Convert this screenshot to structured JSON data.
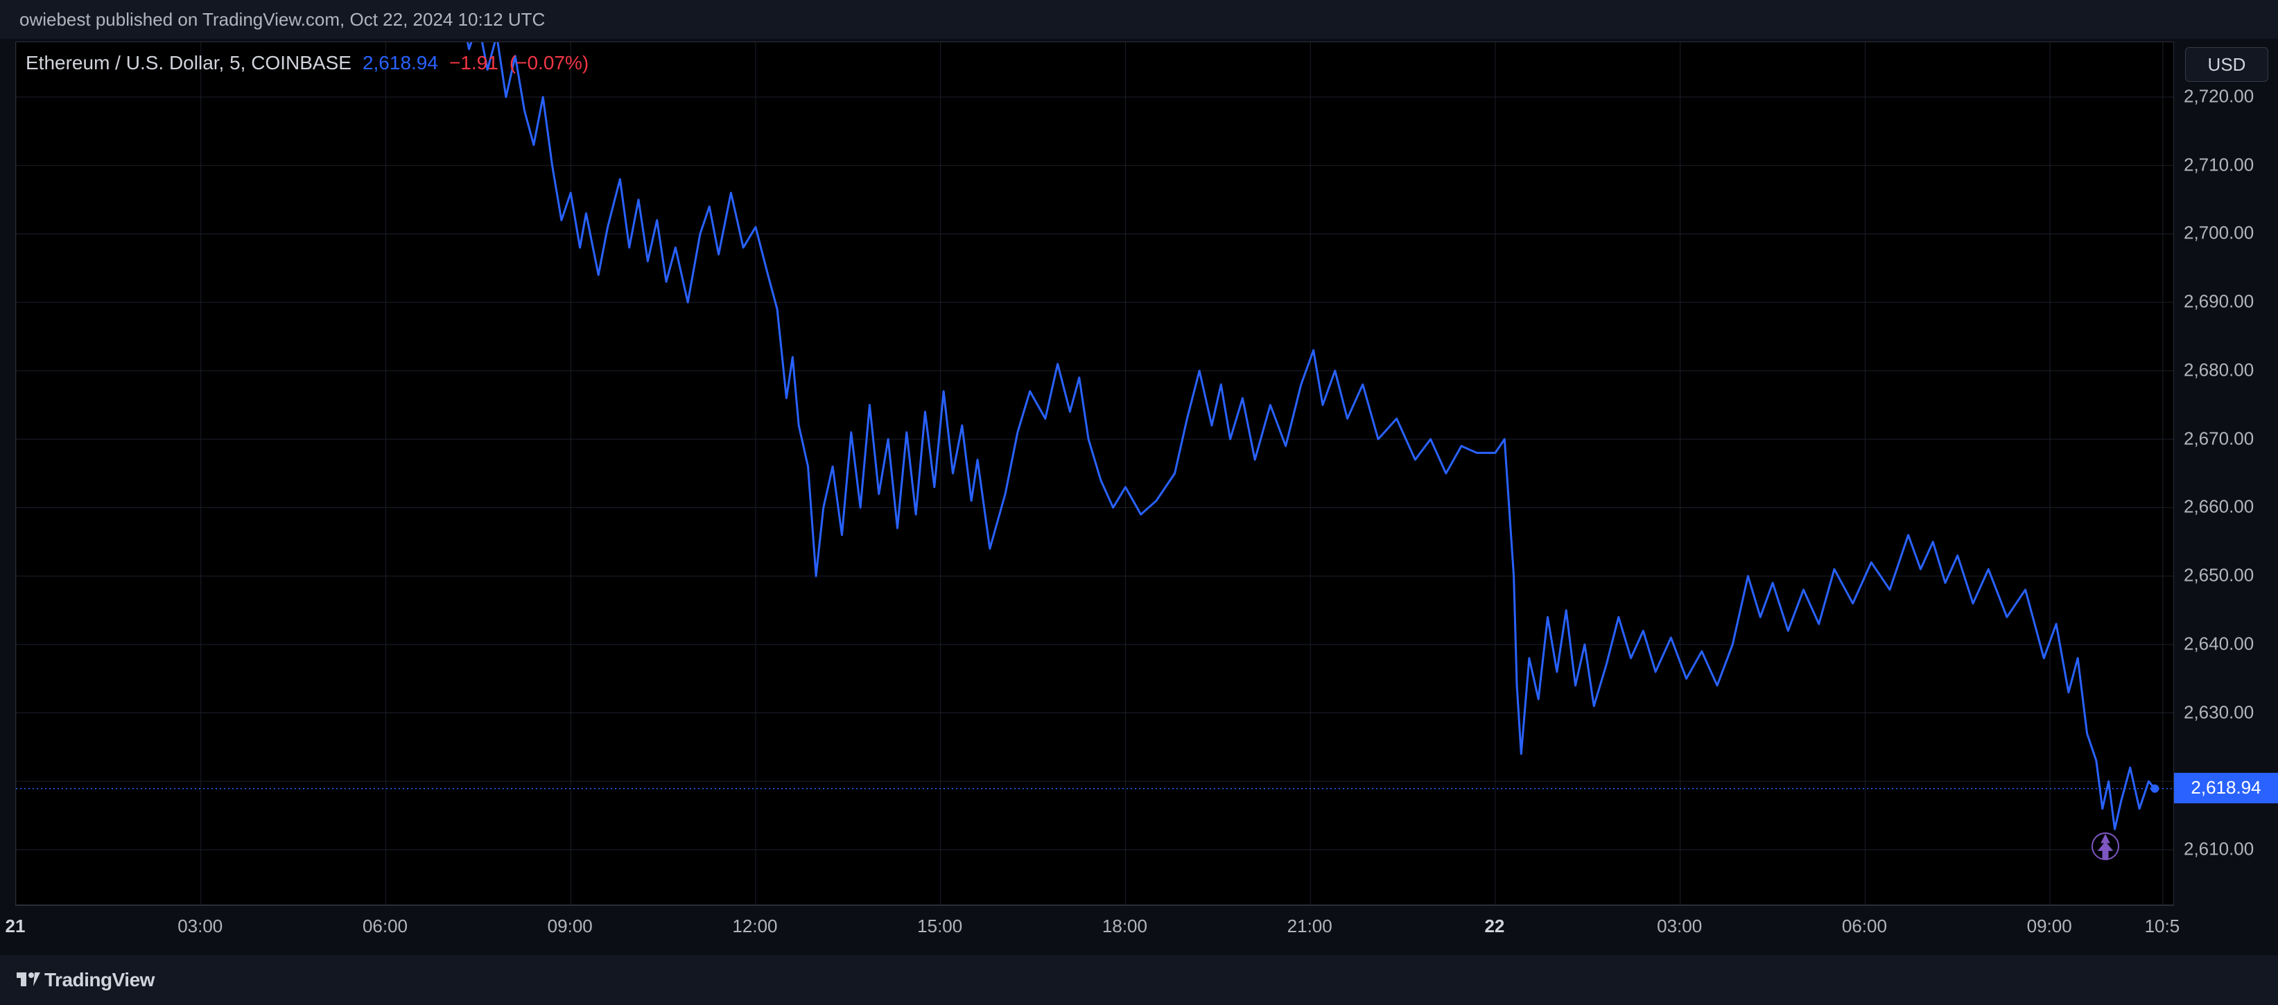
{
  "topbar": {
    "text": "owiebest published on TradingView.com, Oct 22, 2024 10:12 UTC"
  },
  "legend": {
    "symbol": "Ethereum / U.S. Dollar, 5, COINBASE",
    "last": "2,618.94",
    "change": "−1.91",
    "change_pct": "(−0.07%)"
  },
  "footer": {
    "brand": "TradingView"
  },
  "y_axis": {
    "currency": "USD",
    "min": 2602,
    "max": 2728,
    "ticks": [
      2720,
      2710,
      2700,
      2690,
      2680,
      2670,
      2660,
      2650,
      2640,
      2630,
      2620,
      2610
    ],
    "tick_labels": [
      "2,720.00",
      "2,710.00",
      "2,700.00",
      "2,690.00",
      "2,680.00",
      "2,670.00",
      "2,660.00",
      "2,650.00",
      "2,640.00",
      "2,630.00",
      "2,620.00",
      "2,610.00"
    ],
    "last_price": 2618.94,
    "last_price_label": "2,618.94",
    "grid_color": "#1c1f2b"
  },
  "x_axis": {
    "t_min": 0,
    "t_max": 35.0,
    "ticks": [
      0,
      3,
      6,
      9,
      12,
      15,
      18,
      21,
      24,
      27,
      30,
      33,
      34.83
    ],
    "tick_labels": [
      "21",
      "03:00",
      "06:00",
      "09:00",
      "12:00",
      "15:00",
      "18:00",
      "21:00",
      "22",
      "03:00",
      "06:00",
      "09:00",
      "10:5"
    ],
    "bold_idx": [
      0,
      8
    ]
  },
  "chart": {
    "type": "line",
    "line_color": "#2962ff",
    "line_width": 3,
    "background": "#000000",
    "series": [
      [
        7.2,
        2734
      ],
      [
        7.35,
        2727
      ],
      [
        7.5,
        2731
      ],
      [
        7.65,
        2724
      ],
      [
        7.8,
        2729
      ],
      [
        7.95,
        2720
      ],
      [
        8.1,
        2726
      ],
      [
        8.25,
        2718
      ],
      [
        8.4,
        2713
      ],
      [
        8.55,
        2720
      ],
      [
        8.7,
        2710
      ],
      [
        8.85,
        2702
      ],
      [
        9.0,
        2706
      ],
      [
        9.15,
        2698
      ],
      [
        9.25,
        2703
      ],
      [
        9.45,
        2694
      ],
      [
        9.6,
        2701
      ],
      [
        9.8,
        2708
      ],
      [
        9.95,
        2698
      ],
      [
        10.1,
        2705
      ],
      [
        10.25,
        2696
      ],
      [
        10.4,
        2702
      ],
      [
        10.55,
        2693
      ],
      [
        10.7,
        2698
      ],
      [
        10.9,
        2690
      ],
      [
        11.1,
        2700
      ],
      [
        11.25,
        2704
      ],
      [
        11.4,
        2697
      ],
      [
        11.6,
        2706
      ],
      [
        11.8,
        2698
      ],
      [
        12.0,
        2701
      ],
      [
        12.2,
        2694
      ],
      [
        12.35,
        2689
      ],
      [
        12.5,
        2676
      ],
      [
        12.6,
        2682
      ],
      [
        12.7,
        2672
      ],
      [
        12.85,
        2666
      ],
      [
        12.98,
        2650
      ],
      [
        13.1,
        2660
      ],
      [
        13.25,
        2666
      ],
      [
        13.4,
        2656
      ],
      [
        13.55,
        2671
      ],
      [
        13.7,
        2660
      ],
      [
        13.85,
        2675
      ],
      [
        14.0,
        2662
      ],
      [
        14.15,
        2670
      ],
      [
        14.3,
        2657
      ],
      [
        14.45,
        2671
      ],
      [
        14.6,
        2659
      ],
      [
        14.75,
        2674
      ],
      [
        14.9,
        2663
      ],
      [
        15.05,
        2677
      ],
      [
        15.2,
        2665
      ],
      [
        15.35,
        2672
      ],
      [
        15.5,
        2661
      ],
      [
        15.6,
        2667
      ],
      [
        15.8,
        2654
      ],
      [
        16.05,
        2662
      ],
      [
        16.25,
        2671
      ],
      [
        16.45,
        2677
      ],
      [
        16.7,
        2673
      ],
      [
        16.9,
        2681
      ],
      [
        17.1,
        2674
      ],
      [
        17.25,
        2679
      ],
      [
        17.4,
        2670
      ],
      [
        17.6,
        2664
      ],
      [
        17.8,
        2660
      ],
      [
        18.0,
        2663
      ],
      [
        18.25,
        2659
      ],
      [
        18.5,
        2661
      ],
      [
        18.8,
        2665
      ],
      [
        19.0,
        2673
      ],
      [
        19.2,
        2680
      ],
      [
        19.4,
        2672
      ],
      [
        19.55,
        2678
      ],
      [
        19.7,
        2670
      ],
      [
        19.9,
        2676
      ],
      [
        20.1,
        2667
      ],
      [
        20.35,
        2675
      ],
      [
        20.6,
        2669
      ],
      [
        20.85,
        2678
      ],
      [
        21.05,
        2683
      ],
      [
        21.2,
        2675
      ],
      [
        21.4,
        2680
      ],
      [
        21.6,
        2673
      ],
      [
        21.85,
        2678
      ],
      [
        22.1,
        2670
      ],
      [
        22.4,
        2673
      ],
      [
        22.7,
        2667
      ],
      [
        22.95,
        2670
      ],
      [
        23.2,
        2665
      ],
      [
        23.45,
        2669
      ],
      [
        23.7,
        2668
      ],
      [
        24.0,
        2668
      ],
      [
        24.15,
        2670
      ],
      [
        24.3,
        2650
      ],
      [
        24.35,
        2634
      ],
      [
        24.42,
        2624
      ],
      [
        24.55,
        2638
      ],
      [
        24.7,
        2632
      ],
      [
        24.85,
        2644
      ],
      [
        25.0,
        2636
      ],
      [
        25.15,
        2645
      ],
      [
        25.3,
        2634
      ],
      [
        25.45,
        2640
      ],
      [
        25.6,
        2631
      ],
      [
        25.8,
        2637
      ],
      [
        26.0,
        2644
      ],
      [
        26.2,
        2638
      ],
      [
        26.4,
        2642
      ],
      [
        26.6,
        2636
      ],
      [
        26.85,
        2641
      ],
      [
        27.1,
        2635
      ],
      [
        27.35,
        2639
      ],
      [
        27.6,
        2634
      ],
      [
        27.85,
        2640
      ],
      [
        28.1,
        2650
      ],
      [
        28.3,
        2644
      ],
      [
        28.5,
        2649
      ],
      [
        28.75,
        2642
      ],
      [
        29.0,
        2648
      ],
      [
        29.25,
        2643
      ],
      [
        29.5,
        2651
      ],
      [
        29.8,
        2646
      ],
      [
        30.1,
        2652
      ],
      [
        30.4,
        2648
      ],
      [
        30.7,
        2656
      ],
      [
        30.9,
        2651
      ],
      [
        31.1,
        2655
      ],
      [
        31.3,
        2649
      ],
      [
        31.5,
        2653
      ],
      [
        31.75,
        2646
      ],
      [
        32.0,
        2651
      ],
      [
        32.3,
        2644
      ],
      [
        32.6,
        2648
      ],
      [
        32.9,
        2638
      ],
      [
        33.1,
        2643
      ],
      [
        33.3,
        2633
      ],
      [
        33.45,
        2638
      ],
      [
        33.6,
        2627
      ],
      [
        33.75,
        2623
      ],
      [
        33.85,
        2616
      ],
      [
        33.95,
        2620
      ],
      [
        34.05,
        2613
      ],
      [
        34.15,
        2617
      ],
      [
        34.3,
        2622
      ],
      [
        34.45,
        2616
      ],
      [
        34.6,
        2620
      ],
      [
        34.7,
        2618.94
      ]
    ]
  },
  "flame_icon": {
    "t": 33.9,
    "price": 2610.5
  },
  "colors": {
    "bg": "#0c0e15",
    "panel": "#131722",
    "text": "#b2b5be",
    "accent": "#2962ff",
    "neg": "#f23645",
    "border": "#2a2e39"
  }
}
